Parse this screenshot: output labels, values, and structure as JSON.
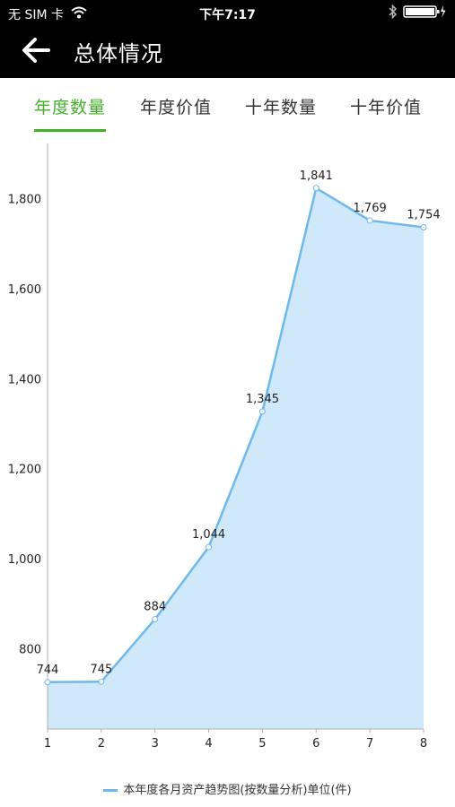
{
  "status_bar": {
    "carrier": "无 SIM 卡",
    "time": "下午7:17",
    "icons": [
      "wifi-icon",
      "bluetooth-icon",
      "battery-charging-icon"
    ]
  },
  "nav": {
    "title": "总体情况",
    "back_icon": "arrow-left-icon"
  },
  "tabs": [
    {
      "label": "年度数量",
      "active": true
    },
    {
      "label": "年度价值",
      "active": false
    },
    {
      "label": "十年数量",
      "active": false
    },
    {
      "label": "十年价值",
      "active": false
    }
  ],
  "colors": {
    "accent": "#43b02a",
    "line": "#6fb8ea",
    "fill": "#cfe9fb",
    "header": "#000000"
  },
  "chart_data": {
    "type": "area",
    "x": [
      1,
      2,
      3,
      4,
      5,
      6,
      7,
      8
    ],
    "series": [
      {
        "name": "本年度各月资产趋势图(按数量分析)单位(件)",
        "values": [
          744,
          745,
          884,
          1044,
          1345,
          1841,
          1769,
          1754
        ],
        "labels": [
          "744",
          "745",
          "884",
          "1,044",
          "1,345",
          "1,841",
          "1,769",
          "1,754"
        ]
      }
    ],
    "y_ticks": [
      "800",
      "1,000",
      "1,200",
      "1,400",
      "1,600",
      "1,800"
    ],
    "x_ticks": [
      "1",
      "2",
      "3",
      "4",
      "5",
      "6",
      "7",
      "8"
    ],
    "ylim": [
      640,
      1960
    ],
    "grid": false,
    "legend_position": "bottom-center"
  }
}
